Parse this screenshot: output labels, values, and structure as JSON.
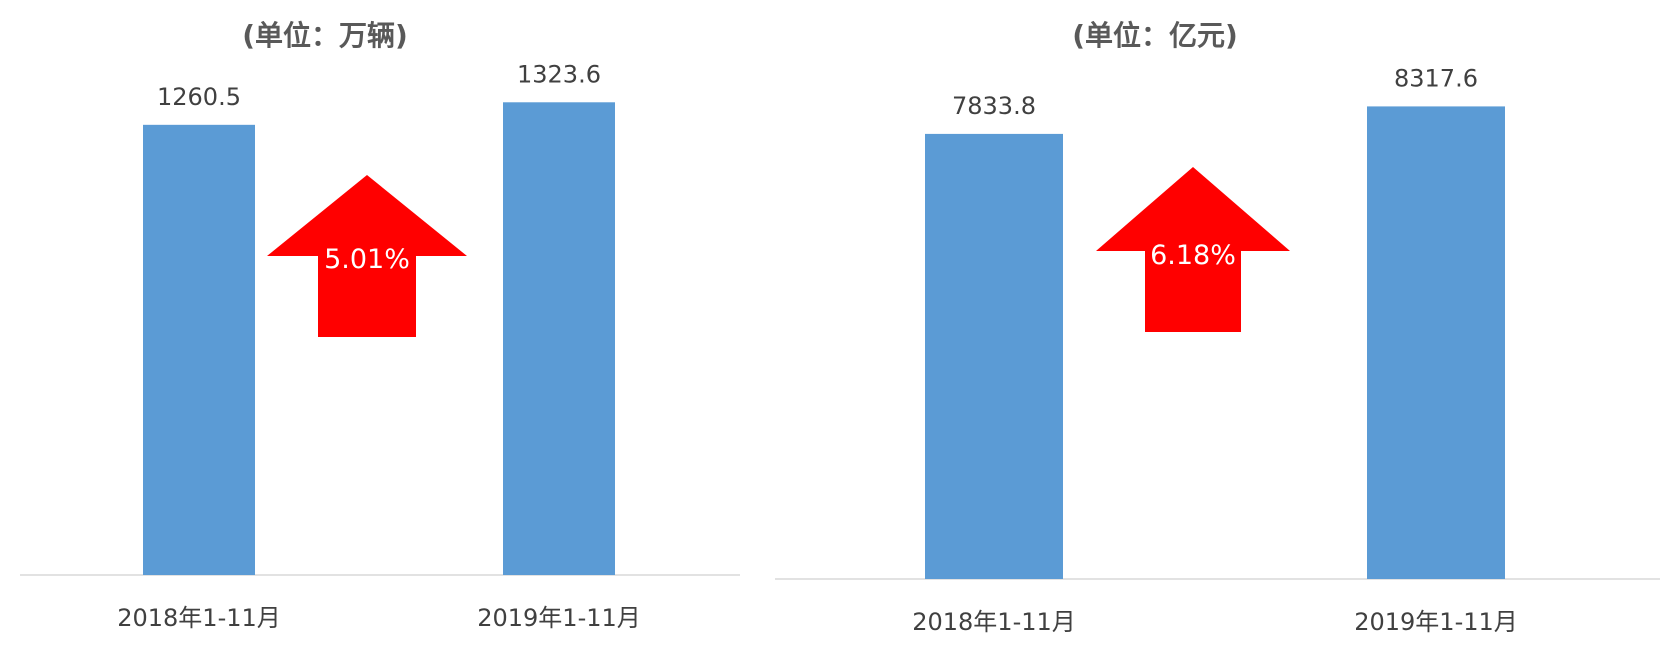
{
  "colors": {
    "bar": "#5b9bd5",
    "arrow": "#ff0000",
    "axis": "#d9d9d9"
  },
  "chart_data": [
    {
      "type": "bar",
      "title": "(单位：万辆)",
      "categories": [
        "2018年1-11月",
        "2019年1-11月"
      ],
      "values": [
        1260.5,
        1323.6
      ],
      "value_labels": [
        "1260.5",
        "1323.6"
      ],
      "growth": "5.01%",
      "ylim": [
        0,
        1400
      ],
      "grid": false
    },
    {
      "type": "bar",
      "title": "(单位：亿元)",
      "categories": [
        "2018年1-11月",
        "2019年1-11月"
      ],
      "values": [
        7833.8,
        8317.6
      ],
      "value_labels": [
        "7833.8",
        "8317.6"
      ],
      "growth": "6.18%",
      "ylim": [
        0,
        8800
      ],
      "grid": false
    }
  ]
}
